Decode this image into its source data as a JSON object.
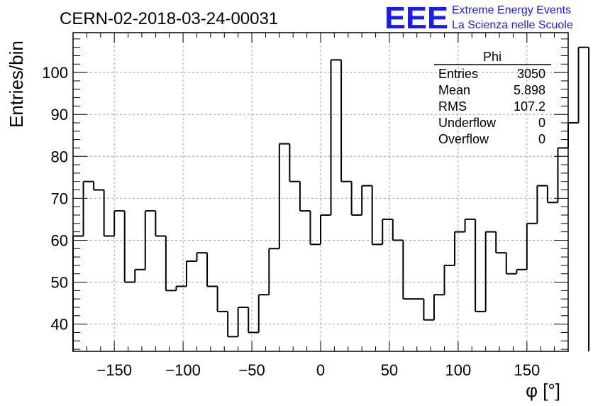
{
  "title": "CERN-02-2018-03-24-00031",
  "logo": {
    "mark": "EEE",
    "line1": "Extreme Energy Events",
    "line2": "La Scienza nelle Scuole",
    "color": "#1a1aff"
  },
  "stats": {
    "name": "Phi",
    "rows": [
      {
        "label": "Entries",
        "value": "3050"
      },
      {
        "label": "Mean",
        "value": "5.898"
      },
      {
        "label": "RMS",
        "value": "107.2"
      },
      {
        "label": "Underflow",
        "value": "0"
      },
      {
        "label": "Overflow",
        "value": "0"
      }
    ]
  },
  "chart_data": {
    "type": "histogram",
    "xlabel": "φ [°]",
    "ylabel": "Entries/bin",
    "xlim": [
      -180,
      180
    ],
    "ylim": [
      33.5,
      109.5
    ],
    "xticks": [
      -150,
      -100,
      -50,
      0,
      50,
      100,
      150
    ],
    "yticks": [
      40,
      50,
      60,
      70,
      80,
      90,
      100
    ],
    "grid": true,
    "line_color": "#000000",
    "bin_width": 7.5,
    "bin_edges_start": -180,
    "values": [
      61,
      74,
      72,
      61,
      67,
      50,
      53,
      67,
      61,
      48,
      49,
      55,
      57,
      49,
      43,
      37,
      44,
      38,
      47,
      58,
      83,
      74,
      67,
      59,
      66,
      103,
      74,
      66,
      73,
      59,
      65,
      60,
      46,
      46,
      41,
      47,
      54,
      62,
      65,
      43,
      62,
      57,
      52,
      53,
      64,
      73,
      69,
      82,
      88,
      106
    ]
  }
}
